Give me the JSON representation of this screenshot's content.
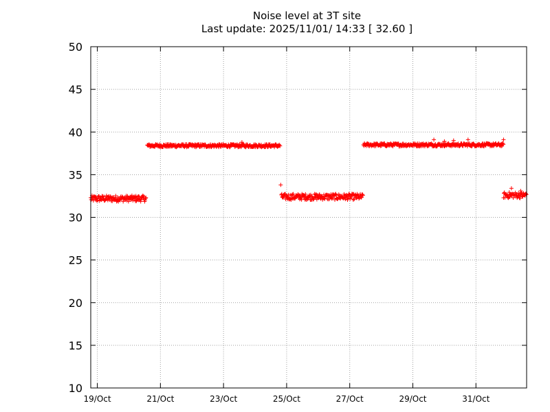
{
  "chart_data": {
    "type": "scatter",
    "title": "Noise level at 3T site",
    "subtitle": "Last update: 2025/11/01/ 14:33 [ 32.60 ]",
    "xlabel": "",
    "ylabel": "",
    "ylim": [
      10,
      50
    ],
    "xlim": [
      "2025-10-18 19:00",
      "2025-11-01 14:33"
    ],
    "y_ticks": [
      "10",
      "15",
      "20",
      "25",
      "30",
      "35",
      "40",
      "45",
      "50"
    ],
    "x_ticks": [
      {
        "date": "2025-10-19",
        "label": "19/Oct"
      },
      {
        "date": "2025-10-21",
        "label": "21/Oct"
      },
      {
        "date": "2025-10-23",
        "label": "23/Oct"
      },
      {
        "date": "2025-10-25",
        "label": "25/Oct"
      },
      {
        "date": "2025-10-27",
        "label": "27/Oct"
      },
      {
        "date": "2025-10-29",
        "label": "29/Oct"
      },
      {
        "date": "2025-10-31",
        "label": "31/Oct"
      }
    ],
    "grid": true,
    "marker": "+",
    "marker_color": "#ff0000",
    "segments": [
      {
        "start": "2025-10-18 19:00",
        "end": "2025-10-20 13:00",
        "level": 32.2
      },
      {
        "start": "2025-10-20 14:00",
        "end": "2025-10-24 19:00",
        "level": 38.4
      },
      {
        "start": "2025-10-24 20:00",
        "end": "2025-10-27 10:00",
        "level": 32.4
      },
      {
        "start": "2025-10-27 10:30",
        "end": "2025-10-31 21:00",
        "level": 38.5
      },
      {
        "start": "2025-10-31 21:00",
        "end": "2025-11-01 14:33",
        "level": 32.6
      }
    ],
    "outliers": [
      {
        "x": "2025-10-24 19:30",
        "y": 33.8
      },
      {
        "x": "2025-10-23 14:00",
        "y": 38.8
      },
      {
        "x": "2025-10-29 16:00",
        "y": 39.1
      },
      {
        "x": "2025-10-30 00:00",
        "y": 38.9
      },
      {
        "x": "2025-10-30 07:00",
        "y": 39.0
      },
      {
        "x": "2025-10-30 18:00",
        "y": 39.1
      },
      {
        "x": "2025-10-31 21:00",
        "y": 39.1
      },
      {
        "x": "2025-11-01 03:00",
        "y": 33.4
      },
      {
        "x": "2025-11-01 10:00",
        "y": 33.1
      }
    ]
  }
}
